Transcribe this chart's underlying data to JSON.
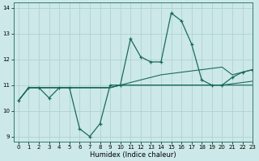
{
  "xlabel": "Humidex (Indice chaleur)",
  "xlim": [
    -0.5,
    23
  ],
  "ylim": [
    8.8,
    14.2
  ],
  "yticks": [
    9,
    10,
    11,
    12,
    13,
    14
  ],
  "xticks": [
    0,
    1,
    2,
    3,
    4,
    5,
    6,
    7,
    8,
    9,
    10,
    11,
    12,
    13,
    14,
    15,
    16,
    17,
    18,
    19,
    20,
    21,
    22,
    23
  ],
  "bg_color": "#cce8e8",
  "line_color": "#1a6b5a",
  "grid_color": "#aacfcf",
  "series_marked": [
    10.4,
    10.9,
    10.9,
    10.5,
    10.9,
    10.9,
    9.3,
    9.0,
    9.5,
    11.0,
    11.0,
    12.8,
    12.1,
    11.9,
    11.9,
    13.8,
    13.5,
    12.6,
    11.2,
    11.0,
    11.0,
    11.3,
    11.5,
    11.6
  ],
  "series_flat1": [
    10.4,
    10.9,
    10.9,
    10.9,
    10.9,
    10.9,
    10.9,
    10.9,
    10.9,
    10.9,
    11.0,
    11.0,
    11.0,
    11.0,
    11.0,
    11.0,
    11.0,
    11.0,
    11.0,
    11.0,
    11.0,
    11.0,
    11.0,
    11.0
  ],
  "series_flat2": [
    10.4,
    10.9,
    10.9,
    10.9,
    10.9,
    10.9,
    10.9,
    10.9,
    10.9,
    10.9,
    11.0,
    11.0,
    11.0,
    11.0,
    11.0,
    11.0,
    11.0,
    11.0,
    11.0,
    11.0,
    11.0,
    11.05,
    11.1,
    11.15
  ],
  "series_rising": [
    10.4,
    10.9,
    10.9,
    10.9,
    10.9,
    10.9,
    10.9,
    10.9,
    10.9,
    10.9,
    11.0,
    11.1,
    11.2,
    11.3,
    11.4,
    11.45,
    11.5,
    11.55,
    11.6,
    11.65,
    11.7,
    11.4,
    11.5,
    11.6
  ]
}
